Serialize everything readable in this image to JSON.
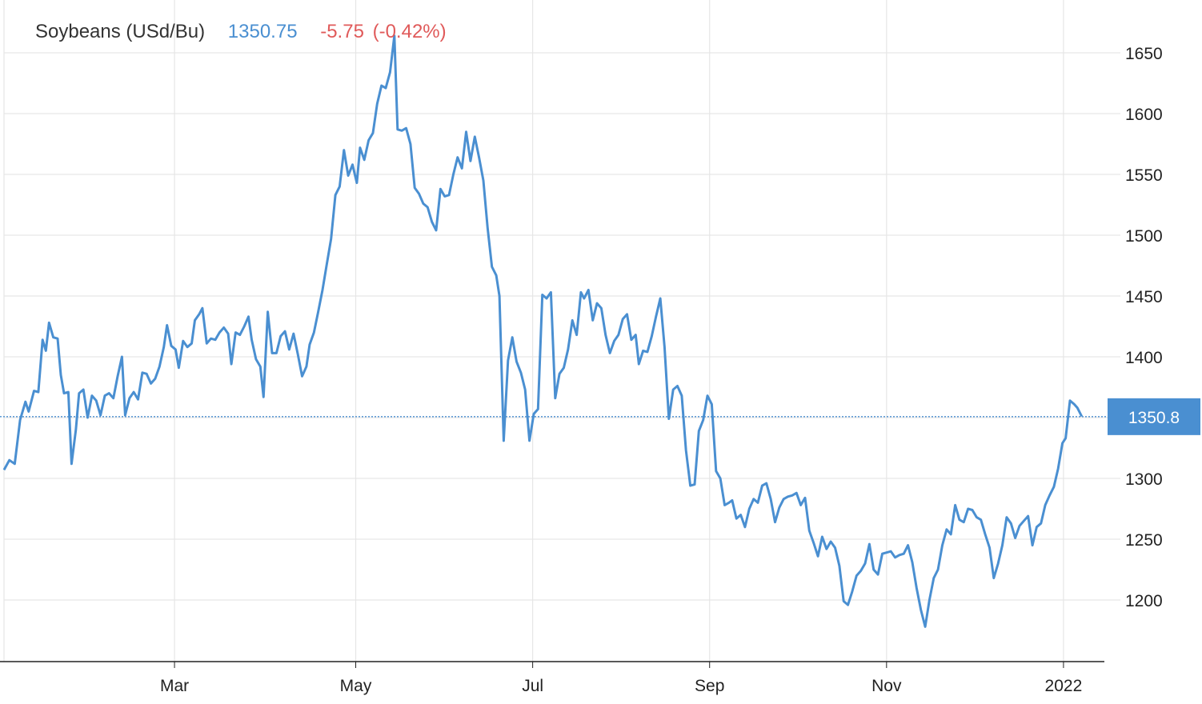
{
  "legend": {
    "name": "Soybeans (USd/Bu)",
    "last_value": "1350.75",
    "change": "-5.75",
    "change_pct": "(-0.42%)"
  },
  "colors": {
    "line": "#4a8fd1",
    "grid": "#e6e6e6",
    "axis": "#222222",
    "last_badge": "#4a8fd1",
    "negative": "#e05a5a"
  },
  "chart_data": {
    "type": "line",
    "title": "",
    "xlabel": "",
    "ylabel": "",
    "x_range": [
      0,
      100
    ],
    "ylim": [
      1150,
      1665
    ],
    "y_ticks": [
      1200,
      1250,
      1300,
      1350,
      1400,
      1450,
      1500,
      1550,
      1600,
      1650
    ],
    "x_ticks": [
      {
        "label": "Mar",
        "pos": 15.9
      },
      {
        "label": "May",
        "pos": 32.8
      },
      {
        "label": "Jul",
        "pos": 49.3
      },
      {
        "label": "Sep",
        "pos": 65.8
      },
      {
        "label": "Nov",
        "pos": 82.3
      },
      {
        "label": "2022",
        "pos": 98.8
      }
    ],
    "last_value_label": "1350.8",
    "last_value": 1350.75,
    "grid": true,
    "series": [
      {
        "name": "Soybeans (USd/Bu)",
        "points": [
          [
            0,
            1307
          ],
          [
            0.5,
            1315
          ],
          [
            1.0,
            1312
          ],
          [
            1.5,
            1348
          ],
          [
            2.0,
            1363
          ],
          [
            2.3,
            1355
          ],
          [
            2.8,
            1372
          ],
          [
            3.2,
            1371
          ],
          [
            3.6,
            1414
          ],
          [
            3.9,
            1405
          ],
          [
            4.2,
            1428
          ],
          [
            4.6,
            1416
          ],
          [
            5.0,
            1415
          ],
          [
            5.3,
            1385
          ],
          [
            5.6,
            1370
          ],
          [
            6.0,
            1371
          ],
          [
            6.3,
            1312
          ],
          [
            6.7,
            1340
          ],
          [
            7.0,
            1370
          ],
          [
            7.4,
            1373
          ],
          [
            7.8,
            1350
          ],
          [
            8.2,
            1368
          ],
          [
            8.6,
            1364
          ],
          [
            9.0,
            1352
          ],
          [
            9.4,
            1368
          ],
          [
            9.8,
            1370
          ],
          [
            10.2,
            1366
          ],
          [
            10.6,
            1384
          ],
          [
            11.0,
            1400
          ],
          [
            11.3,
            1352
          ],
          [
            11.7,
            1366
          ],
          [
            12.1,
            1371
          ],
          [
            12.5,
            1365
          ],
          [
            12.9,
            1387
          ],
          [
            13.3,
            1386
          ],
          [
            13.7,
            1378
          ],
          [
            14.1,
            1382
          ],
          [
            14.5,
            1392
          ],
          [
            14.9,
            1408
          ],
          [
            15.2,
            1426
          ],
          [
            15.6,
            1409
          ],
          [
            16.0,
            1406
          ],
          [
            16.3,
            1391
          ],
          [
            16.7,
            1413
          ],
          [
            17.1,
            1408
          ],
          [
            17.5,
            1411
          ],
          [
            17.8,
            1430
          ],
          [
            18.2,
            1435
          ],
          [
            18.5,
            1440
          ],
          [
            18.9,
            1411
          ],
          [
            19.3,
            1415
          ],
          [
            19.7,
            1414
          ],
          [
            20.1,
            1420
          ],
          [
            20.5,
            1424
          ],
          [
            20.9,
            1419
          ],
          [
            21.2,
            1394
          ],
          [
            21.6,
            1420
          ],
          [
            22.0,
            1418
          ],
          [
            22.4,
            1425
          ],
          [
            22.8,
            1433
          ],
          [
            23.1,
            1414
          ],
          [
            23.5,
            1398
          ],
          [
            23.9,
            1392
          ],
          [
            24.2,
            1367
          ],
          [
            24.6,
            1437
          ],
          [
            25.0,
            1403
          ],
          [
            25.4,
            1403
          ],
          [
            25.8,
            1417
          ],
          [
            26.2,
            1421
          ],
          [
            26.6,
            1406
          ],
          [
            27.0,
            1419
          ],
          [
            27.4,
            1402
          ],
          [
            27.8,
            1384
          ],
          [
            28.2,
            1392
          ],
          [
            28.5,
            1410
          ],
          [
            28.9,
            1420
          ],
          [
            29.3,
            1437
          ],
          [
            29.7,
            1455
          ],
          [
            30.1,
            1476
          ],
          [
            30.5,
            1497
          ],
          [
            30.9,
            1533
          ],
          [
            31.3,
            1540
          ],
          [
            31.7,
            1570
          ],
          [
            32.1,
            1549
          ],
          [
            32.5,
            1558
          ],
          [
            32.9,
            1543
          ],
          [
            33.2,
            1572
          ],
          [
            33.6,
            1562
          ],
          [
            34.0,
            1578
          ],
          [
            34.4,
            1584
          ],
          [
            34.8,
            1608
          ],
          [
            35.2,
            1623
          ],
          [
            35.6,
            1621
          ],
          [
            36.0,
            1634
          ],
          [
            36.4,
            1664
          ],
          [
            36.7,
            1587
          ],
          [
            37.1,
            1586
          ],
          [
            37.5,
            1588
          ],
          [
            37.9,
            1575
          ],
          [
            38.3,
            1539
          ],
          [
            38.7,
            1534
          ],
          [
            39.1,
            1526
          ],
          [
            39.5,
            1523
          ],
          [
            39.9,
            1511
          ],
          [
            40.3,
            1504
          ],
          [
            40.7,
            1538
          ],
          [
            41.1,
            1532
          ],
          [
            41.5,
            1533
          ],
          [
            41.9,
            1550
          ],
          [
            42.3,
            1564
          ],
          [
            42.7,
            1555
          ],
          [
            43.1,
            1585
          ],
          [
            43.5,
            1561
          ],
          [
            43.9,
            1581
          ],
          [
            44.3,
            1564
          ],
          [
            44.7,
            1545
          ],
          [
            45.1,
            1506
          ],
          [
            45.5,
            1474
          ],
          [
            45.9,
            1467
          ],
          [
            46.2,
            1450
          ],
          [
            46.6,
            1331
          ],
          [
            47.0,
            1397
          ],
          [
            47.4,
            1416
          ],
          [
            47.8,
            1396
          ],
          [
            48.2,
            1387
          ],
          [
            48.6,
            1373
          ],
          [
            49.0,
            1331
          ],
          [
            49.4,
            1353
          ],
          [
            49.8,
            1357
          ],
          [
            50.2,
            1451
          ],
          [
            50.6,
            1448
          ],
          [
            51.0,
            1453
          ],
          [
            51.4,
            1366
          ],
          [
            51.8,
            1386
          ],
          [
            52.2,
            1391
          ],
          [
            52.6,
            1406
          ],
          [
            53.0,
            1430
          ],
          [
            53.4,
            1418
          ],
          [
            53.8,
            1453
          ],
          [
            54.1,
            1448
          ],
          [
            54.5,
            1455
          ],
          [
            54.9,
            1430
          ],
          [
            55.3,
            1444
          ],
          [
            55.7,
            1440
          ],
          [
            56.1,
            1418
          ],
          [
            56.5,
            1403
          ],
          [
            56.9,
            1413
          ],
          [
            57.3,
            1418
          ],
          [
            57.7,
            1431
          ],
          [
            58.1,
            1435
          ],
          [
            58.5,
            1414
          ],
          [
            58.9,
            1418
          ],
          [
            59.2,
            1394
          ],
          [
            59.6,
            1405
          ],
          [
            60.0,
            1404
          ],
          [
            60.4,
            1417
          ],
          [
            60.8,
            1433
          ],
          [
            61.2,
            1448
          ],
          [
            61.6,
            1408
          ],
          [
            62.0,
            1349
          ],
          [
            62.4,
            1373
          ],
          [
            62.8,
            1376
          ],
          [
            63.2,
            1368
          ],
          [
            63.6,
            1323
          ],
          [
            64.0,
            1294
          ],
          [
            64.4,
            1295
          ],
          [
            64.8,
            1339
          ],
          [
            65.2,
            1348
          ],
          [
            65.6,
            1368
          ],
          [
            66.0,
            1361
          ],
          [
            66.4,
            1306
          ],
          [
            66.8,
            1300
          ],
          [
            67.2,
            1278
          ],
          [
            67.6,
            1280
          ],
          [
            67.9,
            1282
          ],
          [
            68.3,
            1267
          ],
          [
            68.7,
            1270
          ],
          [
            69.1,
            1260
          ],
          [
            69.5,
            1275
          ],
          [
            69.9,
            1283
          ],
          [
            70.3,
            1280
          ],
          [
            70.7,
            1294
          ],
          [
            71.1,
            1296
          ],
          [
            71.5,
            1283
          ],
          [
            71.9,
            1264
          ],
          [
            72.3,
            1276
          ],
          [
            72.7,
            1283
          ],
          [
            73.1,
            1285
          ],
          [
            73.5,
            1286
          ],
          [
            73.9,
            1288
          ],
          [
            74.3,
            1278
          ],
          [
            74.7,
            1284
          ],
          [
            75.1,
            1257
          ],
          [
            75.5,
            1247
          ],
          [
            75.9,
            1236
          ],
          [
            76.3,
            1252
          ],
          [
            76.7,
            1242
          ],
          [
            77.1,
            1248
          ],
          [
            77.5,
            1243
          ],
          [
            77.9,
            1228
          ],
          [
            78.3,
            1199
          ],
          [
            78.7,
            1196
          ],
          [
            79.1,
            1207
          ],
          [
            79.5,
            1220
          ],
          [
            79.9,
            1224
          ],
          [
            80.3,
            1230
          ],
          [
            80.7,
            1246
          ],
          [
            81.1,
            1225
          ],
          [
            81.5,
            1221
          ],
          [
            81.9,
            1238
          ],
          [
            82.3,
            1239
          ],
          [
            82.7,
            1240
          ],
          [
            83.1,
            1235
          ],
          [
            83.5,
            1237
          ],
          [
            83.9,
            1238
          ],
          [
            84.3,
            1245
          ],
          [
            84.7,
            1231
          ],
          [
            85.1,
            1210
          ],
          [
            85.5,
            1192
          ],
          [
            85.9,
            1178
          ],
          [
            86.3,
            1200
          ],
          [
            86.7,
            1218
          ],
          [
            87.1,
            1225
          ],
          [
            87.5,
            1245
          ],
          [
            87.9,
            1258
          ],
          [
            88.3,
            1254
          ],
          [
            88.7,
            1278
          ],
          [
            89.1,
            1266
          ],
          [
            89.5,
            1264
          ],
          [
            89.9,
            1275
          ],
          [
            90.3,
            1274
          ],
          [
            90.7,
            1268
          ],
          [
            91.1,
            1266
          ],
          [
            91.5,
            1254
          ],
          [
            91.9,
            1243
          ],
          [
            92.3,
            1218
          ],
          [
            92.7,
            1230
          ],
          [
            93.1,
            1245
          ],
          [
            93.5,
            1268
          ],
          [
            93.9,
            1263
          ],
          [
            94.3,
            1251
          ],
          [
            94.7,
            1261
          ],
          [
            95.1,
            1265
          ],
          [
            95.5,
            1269
          ],
          [
            95.9,
            1245
          ],
          [
            96.3,
            1260
          ],
          [
            96.7,
            1263
          ],
          [
            97.1,
            1278
          ],
          [
            97.5,
            1286
          ],
          [
            97.9,
            1293
          ],
          [
            98.3,
            1308
          ],
          [
            98.7,
            1329
          ],
          [
            99.0,
            1333
          ],
          [
            99.4,
            1364
          ],
          [
            99.8,
            1361
          ],
          [
            100.1,
            1358
          ],
          [
            100.5,
            1351
          ]
        ]
      }
    ]
  }
}
